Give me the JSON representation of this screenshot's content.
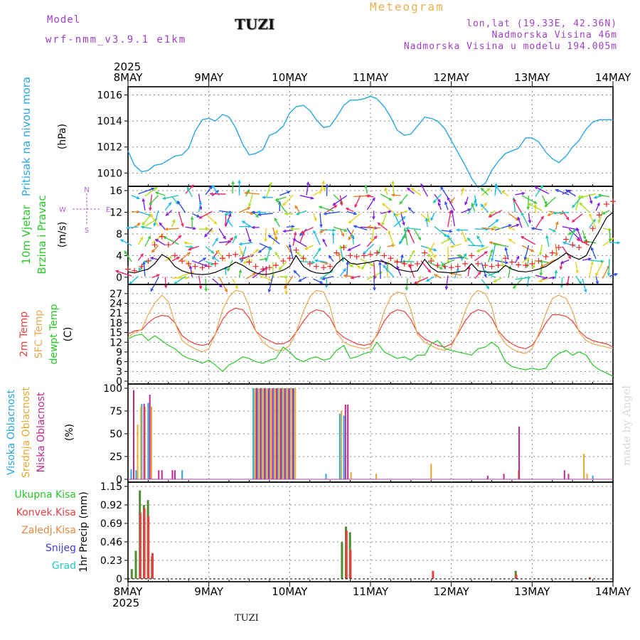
{
  "header": {
    "model_label": "Model",
    "model_version": "wrf-nmm_v3.9.1  e1km",
    "station": "TUZI",
    "chart_kind": "Meteogram",
    "coords": "lon,lat (19.33E, 42.36N)",
    "elevation": "Nadmorska Visina 46m",
    "model_elevation": "Nadmorska Visina u modelu 194.005m",
    "credit": "made by Angel",
    "bottom_station": "TUZI"
  },
  "chart_data": [
    {
      "type": "line",
      "panel": "pressure",
      "ylabel_lines": [
        "Pritisak na nivou mora"
      ],
      "unit": "(hPa)",
      "x_ticks": [
        "8MAY",
        "9MAY",
        "10MAY",
        "11MAY",
        "12MAY",
        "13MAY",
        "14MAY"
      ],
      "top_year": "2025",
      "yticks": [
        1010,
        1012,
        1014,
        1016
      ],
      "ylim": [
        1009.2,
        1016.3
      ],
      "grid": true,
      "color": "#28a8e0",
      "x_days": [
        0,
        0.08,
        0.17,
        0.25,
        0.33,
        0.42,
        0.5,
        0.58,
        0.67,
        0.75,
        0.83,
        0.92,
        1.0,
        1.08,
        1.17,
        1.25,
        1.33,
        1.42,
        1.5,
        1.58,
        1.67,
        1.75,
        1.83,
        1.92,
        2.0,
        2.08,
        2.17,
        2.25,
        2.33,
        2.42,
        2.5,
        2.58,
        2.67,
        2.75,
        2.83,
        2.92,
        3.0,
        3.08,
        3.17,
        3.25,
        3.33,
        3.42,
        3.5,
        3.58,
        3.67,
        3.75,
        3.83,
        3.92,
        4.0,
        4.08,
        4.17,
        4.25,
        4.33,
        4.42,
        4.5,
        4.58,
        4.67,
        4.75,
        4.83,
        4.92,
        5.0,
        5.08,
        5.17,
        5.25,
        5.33,
        5.42,
        5.5,
        5.58,
        5.67,
        5.75,
        5.83,
        5.92,
        6.0
      ],
      "values": [
        1011.7,
        1010.6,
        1010.1,
        1010.2,
        1010.6,
        1010.7,
        1011.0,
        1011.3,
        1011.4,
        1011.9,
        1013.2,
        1014.1,
        1014.2,
        1014.0,
        1014.5,
        1014.3,
        1013.5,
        1012.2,
        1011.4,
        1011.5,
        1011.8,
        1012.9,
        1013.1,
        1013.6,
        1014.6,
        1015.1,
        1015.2,
        1014.8,
        1014.1,
        1013.5,
        1013.6,
        1014.3,
        1015.2,
        1015.6,
        1015.6,
        1015.7,
        1015.9,
        1015.7,
        1015.1,
        1014.3,
        1013.3,
        1012.9,
        1013.0,
        1013.6,
        1014.3,
        1014.2,
        1014.0,
        1013.4,
        1012.5,
        1011.6,
        1010.6,
        1009.6,
        1008.9,
        1009.2,
        1010.2,
        1010.9,
        1011.5,
        1011.7,
        1011.9,
        1012.7,
        1012.7,
        1012.4,
        1011.6,
        1011.1,
        1010.8,
        1011.3,
        1012.0,
        1012.5,
        1013.4,
        1013.9,
        1014.1,
        1014.1,
        1014.1
      ]
    },
    {
      "type": "line",
      "panel": "wind",
      "ylabel_lines": [
        "10m Vjetar",
        "Brzina i Pravac"
      ],
      "unit": "(m/s)",
      "compass_labels": [
        "N",
        "S",
        "E",
        "W"
      ],
      "yticks": [
        0,
        4,
        8,
        12,
        16
      ],
      "ylim": [
        -0.8,
        16
      ],
      "grid": true,
      "speed_color": "#000000",
      "gust_color": "#e82828",
      "x_days": [
        0,
        0.08,
        0.17,
        0.25,
        0.33,
        0.42,
        0.5,
        0.58,
        0.67,
        0.75,
        0.83,
        0.92,
        1.0,
        1.08,
        1.17,
        1.25,
        1.33,
        1.42,
        1.5,
        1.58,
        1.67,
        1.75,
        1.83,
        1.92,
        2.0,
        2.08,
        2.17,
        2.25,
        2.33,
        2.42,
        2.5,
        2.58,
        2.67,
        2.75,
        2.83,
        2.92,
        3.0,
        3.08,
        3.17,
        3.25,
        3.33,
        3.42,
        3.5,
        3.58,
        3.67,
        3.75,
        3.83,
        3.92,
        4.0,
        4.08,
        4.17,
        4.25,
        4.33,
        4.42,
        4.5,
        4.58,
        4.67,
        4.75,
        4.83,
        4.92,
        5.0,
        5.08,
        5.17,
        5.25,
        5.33,
        5.42,
        5.5,
        5.58,
        5.67,
        5.75,
        5.83,
        5.92,
        6.0
      ],
      "speed": [
        1.0,
        0.8,
        1.2,
        1.5,
        2.5,
        4.2,
        3.5,
        2.0,
        1.2,
        0.8,
        0.6,
        0.5,
        0.6,
        0.9,
        1.5,
        2.0,
        2.8,
        2.2,
        1.4,
        0.8,
        0.5,
        0.6,
        0.9,
        1.3,
        2.0,
        4.0,
        2.0,
        1.2,
        0.8,
        0.7,
        0.9,
        2.5,
        3.6,
        2.6,
        2.4,
        2.6,
        2.8,
        3.1,
        2.8,
        2.4,
        1.5,
        1.2,
        1.0,
        1.2,
        3.3,
        1.8,
        1.0,
        0.9,
        0.8,
        1.0,
        1.2,
        2.5,
        1.2,
        1.0,
        0.9,
        1.0,
        2.2,
        1.5,
        1.1,
        1.0,
        1.2,
        1.5,
        2.0,
        2.8,
        3.5,
        4.5,
        3.8,
        3.3,
        4.0,
        6.5,
        8.5,
        11.0,
        12.0
      ],
      "gust": [
        1.5,
        1.2,
        2.0,
        3.0,
        6.0,
        7.5,
        6.0,
        4.0,
        3.0,
        2.5,
        2.0,
        1.8,
        2.0,
        2.5,
        3.5,
        4.0,
        4.2,
        3.5,
        2.8,
        2.0,
        1.5,
        1.8,
        2.2,
        3.0,
        3.5,
        5.0,
        3.5,
        2.5,
        2.0,
        1.8,
        2.0,
        4.5,
        5.5,
        4.0,
        3.8,
        4.0,
        4.2,
        4.5,
        4.0,
        3.5,
        2.8,
        2.5,
        2.2,
        2.5,
        4.5,
        3.0,
        2.2,
        2.0,
        1.8,
        2.0,
        2.5,
        4.0,
        2.5,
        2.2,
        2.0,
        2.2,
        3.5,
        2.8,
        2.3,
        2.2,
        2.5,
        3.0,
        3.8,
        4.5,
        5.5,
        7.0,
        6.0,
        5.5,
        6.5,
        9.0,
        11.5,
        13.5,
        14.0
      ],
      "barb_colors": [
        "#8020e0",
        "#3050e8",
        "#20b8e8",
        "#20c8b0",
        "#40c840",
        "#a8e020",
        "#e8d020",
        "#e88020",
        "#e82868"
      ]
    },
    {
      "type": "line",
      "panel": "temperature",
      "ylabel_lines": [
        "2m Temp",
        "SFC Temp",
        "dewpt Temp"
      ],
      "unit": "(C)",
      "yticks": [
        0,
        3,
        6,
        9,
        12,
        15,
        18,
        21,
        24,
        27
      ],
      "ylim": [
        0,
        28.5
      ],
      "grid": true,
      "x_days": [
        0,
        0.08,
        0.17,
        0.25,
        0.33,
        0.42,
        0.5,
        0.58,
        0.67,
        0.75,
        0.83,
        0.92,
        1.0,
        1.08,
        1.17,
        1.25,
        1.33,
        1.42,
        1.5,
        1.58,
        1.67,
        1.75,
        1.83,
        1.92,
        2.0,
        2.08,
        2.17,
        2.25,
        2.33,
        2.42,
        2.5,
        2.58,
        2.67,
        2.75,
        2.83,
        2.92,
        3.0,
        3.08,
        3.17,
        3.25,
        3.33,
        3.42,
        3.5,
        3.58,
        3.67,
        3.75,
        3.83,
        3.92,
        4.0,
        4.08,
        4.17,
        4.25,
        4.33,
        4.42,
        4.5,
        4.58,
        4.67,
        4.75,
        4.83,
        4.92,
        5.0,
        5.08,
        5.17,
        5.25,
        5.33,
        5.42,
        5.5,
        5.58,
        5.67,
        5.75,
        5.83,
        5.92,
        6.0
      ],
      "series": [
        {
          "name": "2m Temp",
          "color": "#e84040",
          "values": [
            14.5,
            15.5,
            15.8,
            18.0,
            19.5,
            20.3,
            20.0,
            18.0,
            14.0,
            12.5,
            11.5,
            11.0,
            11.5,
            14.5,
            19.0,
            21.5,
            22.5,
            22.0,
            19.5,
            15.5,
            13.5,
            12.5,
            11.5,
            11.5,
            12.5,
            15.0,
            18.5,
            21.0,
            22.0,
            21.5,
            19.5,
            15.5,
            13.5,
            12.5,
            11.5,
            11.0,
            11.5,
            14.0,
            18.5,
            21.0,
            22.0,
            21.5,
            19.0,
            15.0,
            13.0,
            12.0,
            11.0,
            10.5,
            11.5,
            14.5,
            18.5,
            21.0,
            22.0,
            21.5,
            19.5,
            15.5,
            13.0,
            11.5,
            10.5,
            10.0,
            11.0,
            14.0,
            18.0,
            20.5,
            20.5,
            20.0,
            18.5,
            15.5,
            13.5,
            12.5,
            12.0,
            11.5,
            10.5
          ]
        },
        {
          "name": "SFC Temp",
          "color": "#e8a850",
          "values": [
            13.5,
            15.0,
            16.0,
            20.5,
            24.0,
            26.5,
            24.5,
            18.0,
            12.5,
            11.0,
            10.0,
            9.0,
            10.0,
            14.5,
            22.0,
            26.0,
            28.0,
            27.5,
            23.0,
            15.5,
            12.0,
            10.5,
            9.5,
            9.5,
            11.0,
            15.0,
            21.5,
            26.0,
            28.0,
            27.5,
            23.0,
            15.0,
            12.0,
            11.0,
            10.5,
            10.0,
            10.5,
            14.5,
            21.5,
            26.0,
            27.5,
            27.0,
            22.0,
            14.5,
            12.0,
            11.0,
            10.0,
            9.5,
            10.5,
            15.0,
            21.5,
            26.0,
            28.0,
            27.0,
            23.0,
            15.0,
            11.5,
            10.0,
            9.0,
            8.5,
            10.0,
            14.5,
            21.0,
            25.5,
            26.5,
            25.5,
            21.5,
            15.0,
            12.5,
            11.5,
            11.0,
            10.5,
            10.0
          ]
        },
        {
          "name": "dewpt Temp",
          "color": "#28c828",
          "values": [
            13.0,
            14.0,
            14.5,
            12.5,
            14.0,
            12.5,
            11.0,
            10.0,
            8.0,
            7.0,
            6.5,
            5.5,
            6.5,
            5.0,
            3.0,
            5.0,
            6.0,
            7.5,
            7.0,
            6.0,
            5.5,
            6.5,
            7.0,
            10.5,
            9.0,
            7.0,
            6.0,
            7.0,
            7.5,
            6.5,
            7.0,
            9.5,
            11.0,
            7.0,
            7.5,
            8.5,
            9.0,
            12.0,
            9.0,
            8.0,
            7.0,
            7.5,
            6.5,
            8.0,
            8.0,
            11.5,
            12.5,
            10.0,
            9.5,
            9.0,
            8.5,
            8.0,
            10.0,
            10.5,
            12.0,
            10.5,
            6.0,
            4.5,
            4.0,
            3.5,
            4.0,
            3.5,
            4.0,
            7.0,
            8.5,
            9.5,
            8.0,
            9.0,
            8.0,
            5.0,
            3.5,
            2.5,
            1.5
          ]
        }
      ]
    },
    {
      "type": "bar",
      "panel": "clouds",
      "ylabel_lines": [
        "Visoka Oblacnost",
        "Srednja Oblacnost",
        "Niska Oblacnost"
      ],
      "unit": "(%)",
      "yticks": [
        0,
        25,
        50,
        75,
        100
      ],
      "ylim": [
        0,
        100
      ],
      "grid": true,
      "series": [
        {
          "name": "Visoka Oblacnost",
          "color": "#28a8e0",
          "points": [
            [
              0.04,
              11
            ],
            [
              0.1,
              10
            ],
            [
              0.17,
              83
            ],
            [
              0.25,
              84
            ],
            [
              0.67,
              10
            ],
            [
              1.55,
              100
            ],
            [
              1.6,
              100
            ],
            [
              1.65,
              100
            ],
            [
              1.7,
              100
            ],
            [
              1.75,
              100
            ],
            [
              1.8,
              100
            ],
            [
              1.85,
              100
            ],
            [
              1.9,
              100
            ],
            [
              1.95,
              100
            ],
            [
              2.0,
              100
            ],
            [
              2.05,
              100
            ],
            [
              2.45,
              6
            ],
            [
              2.62,
              72
            ],
            [
              2.67,
              70
            ],
            [
              5.75,
              4
            ]
          ]
        },
        {
          "name": "Srednja Oblacnost",
          "color": "#e8a830",
          "points": [
            [
              0.12,
              60
            ],
            [
              0.16,
              80
            ],
            [
              0.21,
              80
            ],
            [
              0.29,
              80
            ],
            [
              1.57,
              100
            ],
            [
              1.62,
              100
            ],
            [
              1.67,
              100
            ],
            [
              1.72,
              100
            ],
            [
              1.77,
              100
            ],
            [
              1.82,
              100
            ],
            [
              1.87,
              100
            ],
            [
              1.92,
              100
            ],
            [
              1.97,
              100
            ],
            [
              2.02,
              100
            ],
            [
              2.07,
              100
            ],
            [
              2.64,
              75
            ],
            [
              2.76,
              8
            ],
            [
              3.07,
              6
            ],
            [
              3.75,
              17
            ],
            [
              4.83,
              10
            ],
            [
              5.64,
              28
            ],
            [
              5.68,
              6
            ]
          ]
        },
        {
          "name": "Niska Oblacnost",
          "color": "#c02890",
          "points": [
            [
              0.07,
              98
            ],
            [
              0.2,
              83
            ],
            [
              0.27,
              93
            ],
            [
              0.38,
              10
            ],
            [
              0.42,
              10
            ],
            [
              0.55,
              10
            ],
            [
              0.58,
              10
            ],
            [
              1.59,
              100
            ],
            [
              1.64,
              100
            ],
            [
              1.69,
              100
            ],
            [
              1.74,
              100
            ],
            [
              1.79,
              100
            ],
            [
              1.84,
              100
            ],
            [
              1.89,
              100
            ],
            [
              1.94,
              100
            ],
            [
              1.99,
              100
            ],
            [
              2.04,
              100
            ],
            [
              2.69,
              82
            ],
            [
              2.72,
              82
            ],
            [
              4.45,
              4
            ],
            [
              4.65,
              6
            ],
            [
              4.84,
              58
            ],
            [
              5.4,
              10
            ],
            [
              5.45,
              6
            ]
          ]
        }
      ]
    },
    {
      "type": "bar",
      "panel": "precipitation",
      "ylabel_lines": [
        "1hr Precip (mm)"
      ],
      "left_legend": [
        "Ukupna Kisa",
        "Konvek.Kisa",
        "Zaledj.Kisa",
        "Snijeg",
        "Grad"
      ],
      "left_legend_colors": [
        "#28c828",
        "#e84040",
        "#e88840",
        "#4040e0",
        "#28c8c8"
      ],
      "yticks": [
        0,
        0.23,
        0.46,
        0.69,
        0.92,
        1.15
      ],
      "ytick_labels": [
        "0",
        "0.23",
        "0.46",
        "0.69",
        "0.92",
        "1.15"
      ],
      "ylim": [
        0,
        1.15
      ],
      "grid": true,
      "bottom_x_ticks": [
        "8MAY",
        "9MAY",
        "10MAY",
        "11MAY",
        "12MAY",
        "13MAY",
        "14MAY"
      ],
      "bottom_year": "2025",
      "series": [
        {
          "name": "Ukupna Kisa",
          "color": "#4e8c2e",
          "points": [
            [
              0.06,
              0.12
            ],
            [
              0.11,
              0.35
            ],
            [
              0.16,
              1.1
            ],
            [
              0.21,
              0.92
            ],
            [
              0.26,
              0.98
            ],
            [
              0.31,
              0.28
            ],
            [
              2.66,
              0.46
            ],
            [
              2.71,
              0.65
            ],
            [
              2.76,
              0.58
            ],
            [
              4.81,
              0.1
            ]
          ]
        },
        {
          "name": "Konvek.Kisa",
          "color": "#e84040",
          "points": [
            [
              0.14,
              0.82
            ],
            [
              0.19,
              0.88
            ],
            [
              0.24,
              0.78
            ],
            [
              0.29,
              0.32
            ],
            [
              2.69,
              0.6
            ],
            [
              2.74,
              0.36
            ],
            [
              3.76,
              0.1
            ],
            [
              4.79,
              0.05
            ],
            [
              5.7,
              0.02
            ]
          ]
        }
      ]
    }
  ]
}
